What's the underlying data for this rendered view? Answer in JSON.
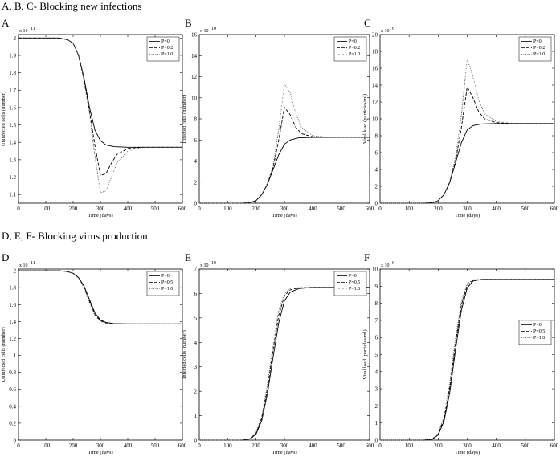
{
  "section_titles": {
    "top": "A, B, C- Blocking new infections",
    "bottom": "D, E, F- Blocking virus production"
  },
  "chart_data": [
    {
      "panel": "A",
      "type": "line",
      "xlabel": "Time (days)",
      "ylabel": "Uninfected cells (number)",
      "exponent": "x 10^11",
      "exp_base": "x 10",
      "exp_pow": "11",
      "xlim": [
        0,
        600
      ],
      "ylim": [
        1.05,
        2.02
      ],
      "xticks": [
        0,
        100,
        200,
        300,
        400,
        500,
        600
      ],
      "yticks": [
        1.1,
        1.2,
        1.3,
        1.4,
        1.5,
        1.6,
        1.7,
        1.8,
        1.9,
        2.0
      ],
      "ytick_labels": [
        "1.1",
        "1.2",
        "1.3",
        "1.4",
        "1.5",
        "1.6",
        "1.7",
        "1.8",
        "1.9",
        "2"
      ],
      "legend_position": "top-right",
      "series": [
        {
          "name": "P=0",
          "style": "solid",
          "x": [
            0,
            150,
            180,
            200,
            220,
            240,
            260,
            280,
            300,
            320,
            350,
            400,
            500,
            600
          ],
          "y": [
            2.0,
            2.0,
            1.99,
            1.97,
            1.9,
            1.77,
            1.6,
            1.47,
            1.41,
            1.385,
            1.375,
            1.372,
            1.372,
            1.372
          ]
        },
        {
          "name": "P=0.2",
          "style": "dashed",
          "x": [
            0,
            150,
            180,
            200,
            220,
            240,
            260,
            280,
            300,
            320,
            340,
            360,
            400,
            450,
            500,
            600
          ],
          "y": [
            2.0,
            2.0,
            1.99,
            1.97,
            1.9,
            1.76,
            1.58,
            1.38,
            1.21,
            1.22,
            1.28,
            1.33,
            1.365,
            1.372,
            1.372,
            1.372
          ]
        },
        {
          "name": "P=1.0",
          "style": "dotted",
          "x": [
            0,
            150,
            180,
            200,
            220,
            240,
            260,
            280,
            300,
            320,
            340,
            360,
            400,
            450,
            500,
            600
          ],
          "y": [
            2.0,
            2.0,
            1.99,
            1.97,
            1.9,
            1.75,
            1.56,
            1.32,
            1.11,
            1.12,
            1.2,
            1.28,
            1.35,
            1.37,
            1.372,
            1.372
          ]
        }
      ]
    },
    {
      "panel": "B",
      "type": "line",
      "xlabel": "Time (days)",
      "ylabel": "Infected cells (number)",
      "exponent": "x 10^10",
      "exp_base": "x 10",
      "exp_pow": "10",
      "xlim": [
        0,
        600
      ],
      "ylim": [
        0,
        16
      ],
      "xticks": [
        0,
        100,
        200,
        300,
        400,
        500,
        600
      ],
      "yticks": [
        0,
        2,
        4,
        6,
        8,
        10,
        12,
        14,
        16
      ],
      "ytick_labels": [
        "0",
        "2",
        "4",
        "6",
        "8",
        "10",
        "12",
        "14",
        "16"
      ],
      "legend_position": "top-right",
      "series": [
        {
          "name": "P=0",
          "style": "solid",
          "x": [
            0,
            150,
            180,
            200,
            220,
            240,
            260,
            280,
            300,
            320,
            350,
            400,
            500,
            600
          ],
          "y": [
            0,
            0,
            0.05,
            0.25,
            0.8,
            1.8,
            3.2,
            4.6,
            5.6,
            6.0,
            6.2,
            6.25,
            6.25,
            6.25
          ]
        },
        {
          "name": "P=0.2",
          "style": "dashed",
          "x": [
            0,
            150,
            180,
            200,
            220,
            240,
            260,
            280,
            300,
            320,
            340,
            360,
            400,
            450,
            500,
            600
          ],
          "y": [
            0,
            0,
            0.05,
            0.25,
            0.8,
            1.8,
            3.4,
            6.0,
            9.1,
            8.4,
            7.2,
            6.6,
            6.3,
            6.25,
            6.25,
            6.25
          ]
        },
        {
          "name": "P=1.0",
          "style": "dotted",
          "x": [
            0,
            150,
            180,
            200,
            220,
            240,
            260,
            280,
            300,
            320,
            340,
            360,
            400,
            450,
            500,
            600
          ],
          "y": [
            0,
            0,
            0.05,
            0.25,
            0.8,
            1.9,
            3.6,
            7.0,
            11.3,
            10.5,
            8.5,
            7.2,
            6.4,
            6.27,
            6.25,
            6.25
          ]
        }
      ]
    },
    {
      "panel": "C",
      "type": "line",
      "xlabel": "Time (days)",
      "ylabel": "Viral load (particles/ml)",
      "exponent": "x 10^6",
      "exp_base": "x 10",
      "exp_pow": "6",
      "xlim": [
        0,
        600
      ],
      "ylim": [
        0,
        20
      ],
      "xticks": [
        0,
        100,
        200,
        300,
        400,
        500,
        600
      ],
      "yticks": [
        0,
        2,
        4,
        6,
        8,
        10,
        12,
        14,
        16,
        18,
        20
      ],
      "ytick_labels": [
        "0",
        "2",
        "4",
        "6",
        "8",
        "10",
        "12",
        "14",
        "16",
        "18",
        "20"
      ],
      "legend_position": "top-right",
      "series": [
        {
          "name": "P=0",
          "style": "solid",
          "x": [
            0,
            150,
            180,
            200,
            220,
            240,
            260,
            280,
            300,
            320,
            350,
            400,
            500,
            600
          ],
          "y": [
            0,
            0,
            0.05,
            0.3,
            1.0,
            2.5,
            4.8,
            7.2,
            8.7,
            9.2,
            9.4,
            9.45,
            9.45,
            9.45
          ]
        },
        {
          "name": "P=0.2",
          "style": "dashed",
          "x": [
            0,
            150,
            180,
            200,
            220,
            240,
            260,
            280,
            300,
            320,
            340,
            360,
            400,
            450,
            500,
            600
          ],
          "y": [
            0,
            0,
            0.05,
            0.3,
            1.0,
            2.5,
            5.0,
            9.0,
            13.8,
            12.5,
            10.8,
            10.0,
            9.55,
            9.45,
            9.45,
            9.45
          ]
        },
        {
          "name": "P=1.0",
          "style": "dotted",
          "x": [
            0,
            150,
            180,
            200,
            220,
            240,
            260,
            280,
            300,
            320,
            340,
            360,
            400,
            450,
            500,
            600
          ],
          "y": [
            0,
            0,
            0.05,
            0.3,
            1.0,
            2.6,
            5.5,
            10.5,
            17.1,
            15.0,
            12.2,
            10.6,
            9.7,
            9.5,
            9.45,
            9.45
          ]
        }
      ]
    },
    {
      "panel": "D",
      "type": "line",
      "xlabel": "Time (days)",
      "ylabel": "Uninfected cells (number)",
      "exponent": "x 10^11",
      "exp_base": "x 10",
      "exp_pow": "11",
      "xlim": [
        0,
        600
      ],
      "ylim": [
        0,
        2.02
      ],
      "xticks": [
        0,
        100,
        200,
        300,
        400,
        500,
        600
      ],
      "yticks": [
        0,
        0.2,
        0.4,
        0.6,
        0.8,
        1.0,
        1.2,
        1.4,
        1.6,
        1.8,
        2.0
      ],
      "ytick_labels": [
        "0",
        "0.2",
        "0.4",
        "0.6",
        "0.8",
        "1",
        "1.2",
        "1.4",
        "1.6",
        "1.8",
        "2"
      ],
      "legend_position": "top-right",
      "series": [
        {
          "name": "P=0",
          "style": "solid",
          "x": [
            0,
            150,
            180,
            200,
            220,
            240,
            260,
            280,
            300,
            320,
            350,
            400,
            500,
            600
          ],
          "y": [
            2.0,
            2.0,
            1.99,
            1.97,
            1.92,
            1.82,
            1.66,
            1.5,
            1.42,
            1.39,
            1.375,
            1.372,
            1.372,
            1.372
          ]
        },
        {
          "name": "P=0.5",
          "style": "dashed",
          "x": [
            0,
            150,
            180,
            200,
            220,
            240,
            260,
            280,
            300,
            320,
            350,
            400,
            500,
            600
          ],
          "y": [
            2.0,
            2.0,
            1.99,
            1.97,
            1.92,
            1.81,
            1.64,
            1.48,
            1.41,
            1.385,
            1.374,
            1.372,
            1.372,
            1.372
          ]
        },
        {
          "name": "P=1.0",
          "style": "dotted",
          "x": [
            0,
            150,
            180,
            200,
            220,
            240,
            260,
            280,
            300,
            320,
            350,
            400,
            500,
            600
          ],
          "y": [
            2.0,
            2.0,
            1.99,
            1.97,
            1.91,
            1.8,
            1.62,
            1.47,
            1.4,
            1.38,
            1.373,
            1.372,
            1.372,
            1.372
          ]
        }
      ]
    },
    {
      "panel": "E",
      "type": "line",
      "xlabel": "Time (days)",
      "ylabel": "Infected cells (number)",
      "exponent": "x 10^10",
      "exp_base": "x 10",
      "exp_pow": "10",
      "xlim": [
        0,
        600
      ],
      "ylim": [
        0,
        7
      ],
      "xticks": [
        0,
        100,
        200,
        300,
        400,
        500,
        600
      ],
      "yticks": [
        0,
        1,
        2,
        3,
        4,
        5,
        6,
        7
      ],
      "ytick_labels": [
        "0",
        "1",
        "2",
        "3",
        "4",
        "5",
        "6",
        "7"
      ],
      "legend_position": "top-right",
      "series": [
        {
          "name": "P=0",
          "style": "solid",
          "x": [
            0,
            150,
            180,
            200,
            220,
            240,
            260,
            280,
            300,
            320,
            350,
            400,
            500,
            600
          ],
          "y": [
            0,
            0,
            0.05,
            0.25,
            0.8,
            1.9,
            3.4,
            4.8,
            5.7,
            6.05,
            6.2,
            6.25,
            6.25,
            6.25
          ]
        },
        {
          "name": "P=0.5",
          "style": "dashed",
          "x": [
            0,
            150,
            180,
            200,
            220,
            240,
            260,
            280,
            300,
            320,
            350,
            400,
            500,
            600
          ],
          "y": [
            0,
            0,
            0.06,
            0.28,
            0.9,
            2.1,
            3.7,
            5.1,
            5.9,
            6.15,
            6.23,
            6.25,
            6.25,
            6.25
          ]
        },
        {
          "name": "P=1.0",
          "style": "dotted",
          "x": [
            0,
            150,
            180,
            200,
            220,
            240,
            260,
            280,
            300,
            320,
            350,
            400,
            500,
            600
          ],
          "y": [
            0,
            0,
            0.07,
            0.32,
            1.0,
            2.3,
            3.9,
            5.3,
            6.0,
            6.2,
            6.24,
            6.25,
            6.25,
            6.25
          ]
        }
      ]
    },
    {
      "panel": "F",
      "type": "line",
      "xlabel": "Time (days)",
      "ylabel": "Viral load (particles/ml)",
      "exponent": "x 10^6",
      "exp_base": "x 10",
      "exp_pow": "6",
      "xlim": [
        0,
        600
      ],
      "ylim": [
        0,
        10
      ],
      "xticks": [
        0,
        100,
        200,
        300,
        400,
        500,
        600
      ],
      "yticks": [
        0,
        1,
        2,
        3,
        4,
        5,
        6,
        7,
        8,
        9,
        10
      ],
      "ytick_labels": [
        "0",
        "1",
        "2",
        "3",
        "4",
        "5",
        "6",
        "7",
        "8",
        "9",
        "10"
      ],
      "legend_position": "right",
      "series": [
        {
          "name": "P=0",
          "style": "solid",
          "x": [
            0,
            150,
            180,
            200,
            220,
            240,
            260,
            280,
            300,
            320,
            350,
            400,
            500,
            600
          ],
          "y": [
            0,
            0,
            0.05,
            0.3,
            1.1,
            2.8,
            5.3,
            7.6,
            8.9,
            9.3,
            9.4,
            9.4,
            9.4,
            9.4
          ]
        },
        {
          "name": "P=0.5",
          "style": "dashed",
          "x": [
            0,
            150,
            180,
            200,
            220,
            240,
            260,
            280,
            300,
            320,
            350,
            400,
            500,
            600
          ],
          "y": [
            0,
            0,
            0.06,
            0.35,
            1.25,
            3.1,
            5.7,
            7.9,
            9.05,
            9.35,
            9.4,
            9.4,
            9.4,
            9.4
          ]
        },
        {
          "name": "P=1.0",
          "style": "dotted",
          "x": [
            0,
            150,
            180,
            200,
            220,
            240,
            260,
            280,
            300,
            320,
            350,
            400,
            500,
            600
          ],
          "y": [
            0,
            0,
            0.07,
            0.4,
            1.4,
            3.4,
            6.0,
            8.1,
            9.15,
            9.38,
            9.4,
            9.4,
            9.4,
            9.4
          ]
        }
      ]
    }
  ]
}
